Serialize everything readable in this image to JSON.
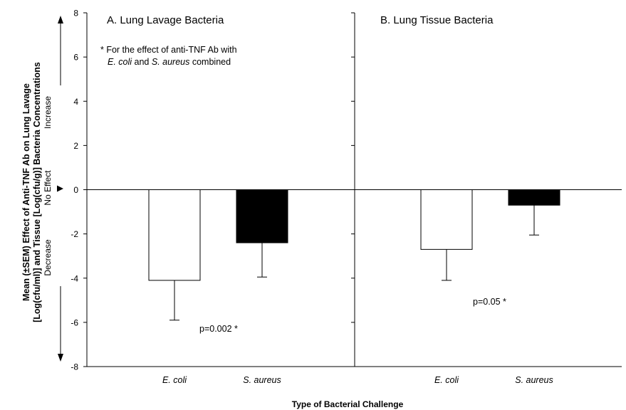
{
  "chart_data": [
    {
      "type": "bar",
      "title": "A. Lung Lavage Bacteria",
      "categories": [
        "E. coli",
        "S. aureus"
      ],
      "values": [
        -4.1,
        -2.4
      ],
      "error_low": [
        -5.9,
        -3.95
      ],
      "colors": [
        "#ffffff",
        "#000000"
      ],
      "annotation": "p=0.002 *",
      "note_lines": [
        "* For the effect of anti-TNF Ab with",
        "E. coli and S. aureus combined"
      ],
      "ylim": [
        -8,
        8
      ],
      "yticks": [
        "-8",
        "-6",
        "-4",
        "-2",
        "0",
        "2",
        "4",
        "6",
        "8"
      ]
    },
    {
      "type": "bar",
      "title": "B. Lung Tissue Bacteria",
      "categories": [
        "E. coli",
        "S. aureus"
      ],
      "values": [
        -2.7,
        -0.7
      ],
      "error_low": [
        -4.1,
        -2.05
      ],
      "colors": [
        "#ffffff",
        "#000000"
      ],
      "annotation": "p=0.05 *",
      "ylim": [
        -8,
        8
      ]
    }
  ],
  "ylabel_lines": [
    "Mean (±SEM) Effect of Anti-TNF Ab on Lung Lavage",
    "[Log(cfu/ml)] and Tissue [Log(cfu/g)] Bacteria Concentrations"
  ],
  "xlabel": "Type of Bacterial Challenge",
  "direction_labels": {
    "increase": "Increase",
    "no_effect": "No Effect",
    "decrease": "Decrease"
  }
}
